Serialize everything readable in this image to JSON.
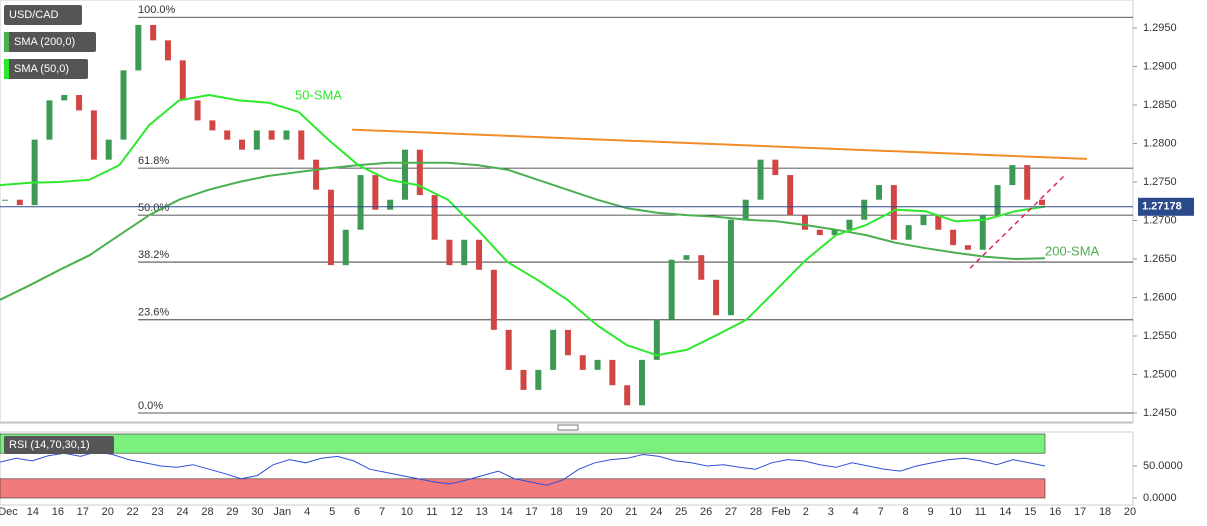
{
  "chart_data": [
    {
      "type": "candlestick",
      "title": "USD/CAD",
      "x_labels": [
        "Dec",
        "14",
        "16",
        "17",
        "20",
        "22",
        "23",
        "24",
        "28",
        "29",
        "30",
        "Jan",
        "4",
        "5",
        "6",
        "7",
        "10",
        "11",
        "12",
        "13",
        "14",
        "17",
        "18",
        "19",
        "20",
        "21",
        "24",
        "25",
        "26",
        "27",
        "28",
        "Feb",
        "2",
        "3",
        "4",
        "7",
        "8",
        "9",
        "10",
        "11",
        "14",
        "15",
        "16",
        "17",
        "18",
        "20"
      ],
      "values": [
        1.2727,
        1.272,
        1.2805,
        1.2856,
        1.2863,
        1.2843,
        1.2779,
        1.2805,
        1.2895,
        1.2954,
        1.2934,
        1.2908,
        1.2856,
        1.283,
        1.2817,
        1.2805,
        1.2792,
        1.2817,
        1.2805,
        1.2817,
        1.2779,
        1.274,
        1.2642,
        1.2688,
        1.2759,
        1.2714,
        1.2727,
        1.2792,
        1.2733,
        1.2675,
        1.2642,
        1.2675,
        1.2636,
        1.2558,
        1.2506,
        1.248,
        1.2506,
        1.2558,
        1.2525,
        1.2506,
        1.2519,
        1.2486,
        1.246,
        1.2519,
        1.2571,
        1.2649,
        1.2655,
        1.2623,
        1.2577,
        1.2701,
        1.2727,
        1.2779,
        1.2759,
        1.2707,
        1.2688,
        1.2681,
        1.2688,
        1.2701,
        1.2727,
        1.2746,
        1.2675,
        1.2694,
        1.2707,
        1.2688,
        1.2668,
        1.2662,
        1.2707,
        1.2746,
        1.2772,
        1.2727,
        1.272
      ],
      "up_color": "#3d9a55",
      "down_color": "#d24545",
      "ylim": [
        1.24383,
        1.29864
      ],
      "yticks": [
        {
          "value": 1.295,
          "label": "1.2950"
        },
        {
          "value": 1.29,
          "label": "1.2900"
        },
        {
          "value": 1.285,
          "label": "1.2850"
        },
        {
          "value": 1.28,
          "label": "1.2800"
        },
        {
          "value": 1.275,
          "label": "1.2750"
        },
        {
          "value": 1.27,
          "label": "1.2700"
        },
        {
          "value": 1.265,
          "label": "1.2650"
        },
        {
          "value": 1.26,
          "label": "1.2600"
        },
        {
          "value": 1.255,
          "label": "1.2550"
        },
        {
          "value": 1.25,
          "label": "1.2500"
        },
        {
          "value": 1.245,
          "label": "1.2450"
        }
      ],
      "series": [
        {
          "name": "SMA (200,0)",
          "color": "#4caf50",
          "values": [
            1.2597,
            1.2616,
            1.2636,
            1.2655,
            1.2681,
            1.2707,
            1.2727,
            1.274,
            1.275,
            1.2758,
            1.2763,
            1.2768,
            1.2772,
            1.2775,
            1.2775,
            1.2775,
            1.2772,
            1.2766,
            1.2753,
            1.274,
            1.2727,
            1.2716,
            1.271,
            1.2707,
            1.2705,
            1.2701,
            1.2699,
            1.2694,
            1.2688,
            1.2681,
            1.2671,
            1.2664,
            1.2658,
            1.2653,
            1.265,
            1.2651
          ]
        },
        {
          "name": "SMA (50,0)",
          "color": "#2ee82e",
          "values": [
            1.2746,
            1.2749,
            1.275,
            1.2753,
            1.2772,
            1.2824,
            1.2856,
            1.2863,
            1.2856,
            1.2853,
            1.2841,
            1.2805,
            1.2772,
            1.2753,
            1.2746,
            1.2727,
            1.2688,
            1.2646,
            1.2623,
            1.2597,
            1.2564,
            1.2538,
            1.2525,
            1.2532,
            1.2551,
            1.2571,
            1.261,
            1.2649,
            1.2681,
            1.2694,
            1.2714,
            1.2712,
            1.2699,
            1.2701,
            1.2712,
            1.2718
          ]
        }
      ],
      "annotations": [
        "50-SMA",
        "200-SMA"
      ],
      "fibonacci": [
        {
          "label": "100.0%",
          "value": 1.2964
        },
        {
          "label": "61.8%",
          "value": 1.2768
        },
        {
          "label": "50.0%",
          "value": 1.2707
        },
        {
          "label": "38.2%",
          "value": 1.2646
        },
        {
          "label": "23.6%",
          "value": 1.2571
        },
        {
          "label": "0.0%",
          "value": 1.245
        }
      ],
      "trendlines": [
        {
          "color": "#f28c28",
          "values": [
            1.2818,
            1.278
          ]
        },
        {
          "color": "#e0245e",
          "values": [
            1.2638,
            1.2759
          ]
        }
      ],
      "last_price": 1.27178,
      "last_price_color": "#2b4a8b"
    },
    {
      "type": "line",
      "title": "RSI (14,70,30,1)",
      "color": "#3050d8",
      "values": [
        56,
        62,
        58,
        66,
        70,
        65,
        72,
        68,
        60,
        55,
        50,
        48,
        52,
        45,
        38,
        30,
        35,
        52,
        60,
        55,
        62,
        65,
        58,
        45,
        40,
        35,
        30,
        25,
        22,
        28,
        35,
        42,
        30,
        25,
        20,
        28,
        45,
        55,
        60,
        62,
        68,
        65,
        58,
        55,
        50,
        52,
        48,
        45,
        55,
        60,
        58,
        52,
        48,
        55,
        50,
        45,
        42,
        50,
        55,
        60,
        62,
        58,
        52,
        60,
        55,
        50
      ],
      "ylim": [
        0,
        100
      ],
      "zones": [
        {
          "from": 70,
          "to": 100,
          "color": "#7cf07c"
        },
        {
          "from": 0,
          "to": 30,
          "color": "#f27a7a"
        }
      ],
      "yticks": [
        {
          "value": 50,
          "label": "50.0000"
        },
        {
          "value": 0,
          "label": "0.0000"
        }
      ]
    }
  ]
}
